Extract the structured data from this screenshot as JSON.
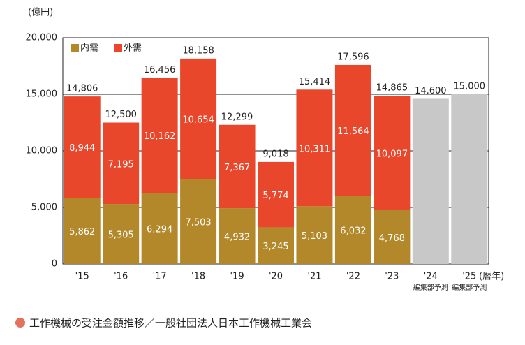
{
  "chart_data": {
    "type": "stacked_bar",
    "y_unit_label": "(億円)",
    "x_unit_label": "(暦年)",
    "caption": "工作機械の受注金額推移／一般社団法人日本工作機械工業会",
    "categories": [
      "'15",
      "'16",
      "'17",
      "'18",
      "'19",
      "'20",
      "'21",
      "'22",
      "'23",
      "'24",
      "'25"
    ],
    "x_sublabels": [
      null,
      null,
      null,
      null,
      null,
      null,
      null,
      null,
      null,
      "編集部予測",
      "編集部予測"
    ],
    "series": [
      {
        "name": "内需",
        "color": "#b3882a",
        "values": [
          5862,
          5305,
          6294,
          7503,
          4932,
          3245,
          5103,
          6032,
          4768,
          null,
          null
        ],
        "value_labels": [
          "5,862",
          "5,305",
          "6,294",
          "7,503",
          "4,932",
          "3,245",
          "5,103",
          "6,032",
          "4,768",
          null,
          null
        ]
      },
      {
        "name": "外需",
        "color": "#e8472b",
        "values": [
          8944,
          7195,
          10162,
          10654,
          7367,
          5774,
          10311,
          11564,
          10097,
          null,
          null
        ],
        "value_labels": [
          "8,944",
          "7,195",
          "10,162",
          "10,654",
          "7,367",
          "5,774",
          "10,311",
          "11,564",
          "10,097",
          null,
          null
        ]
      }
    ],
    "totals": {
      "values": [
        14806,
        12500,
        16456,
        18158,
        12299,
        9018,
        15414,
        17596,
        14865,
        14600,
        15000
      ],
      "value_labels": [
        "14,806",
        "12,500",
        "16,456",
        "18,158",
        "12,299",
        "9,018",
        "15,414",
        "17,596",
        "14,865",
        "14,600",
        "15,000"
      ]
    },
    "forecast_color": "#c8c8c8",
    "ylim": [
      0,
      20000
    ],
    "yticks": [
      0,
      {
        "value": 5000,
        "label": "5,000"
      },
      {
        "value": 10000,
        "label": "10,000"
      },
      {
        "value": 15000,
        "label": "15,000"
      },
      {
        "value": 20000,
        "label": "20,000"
      }
    ],
    "grid": true
  }
}
